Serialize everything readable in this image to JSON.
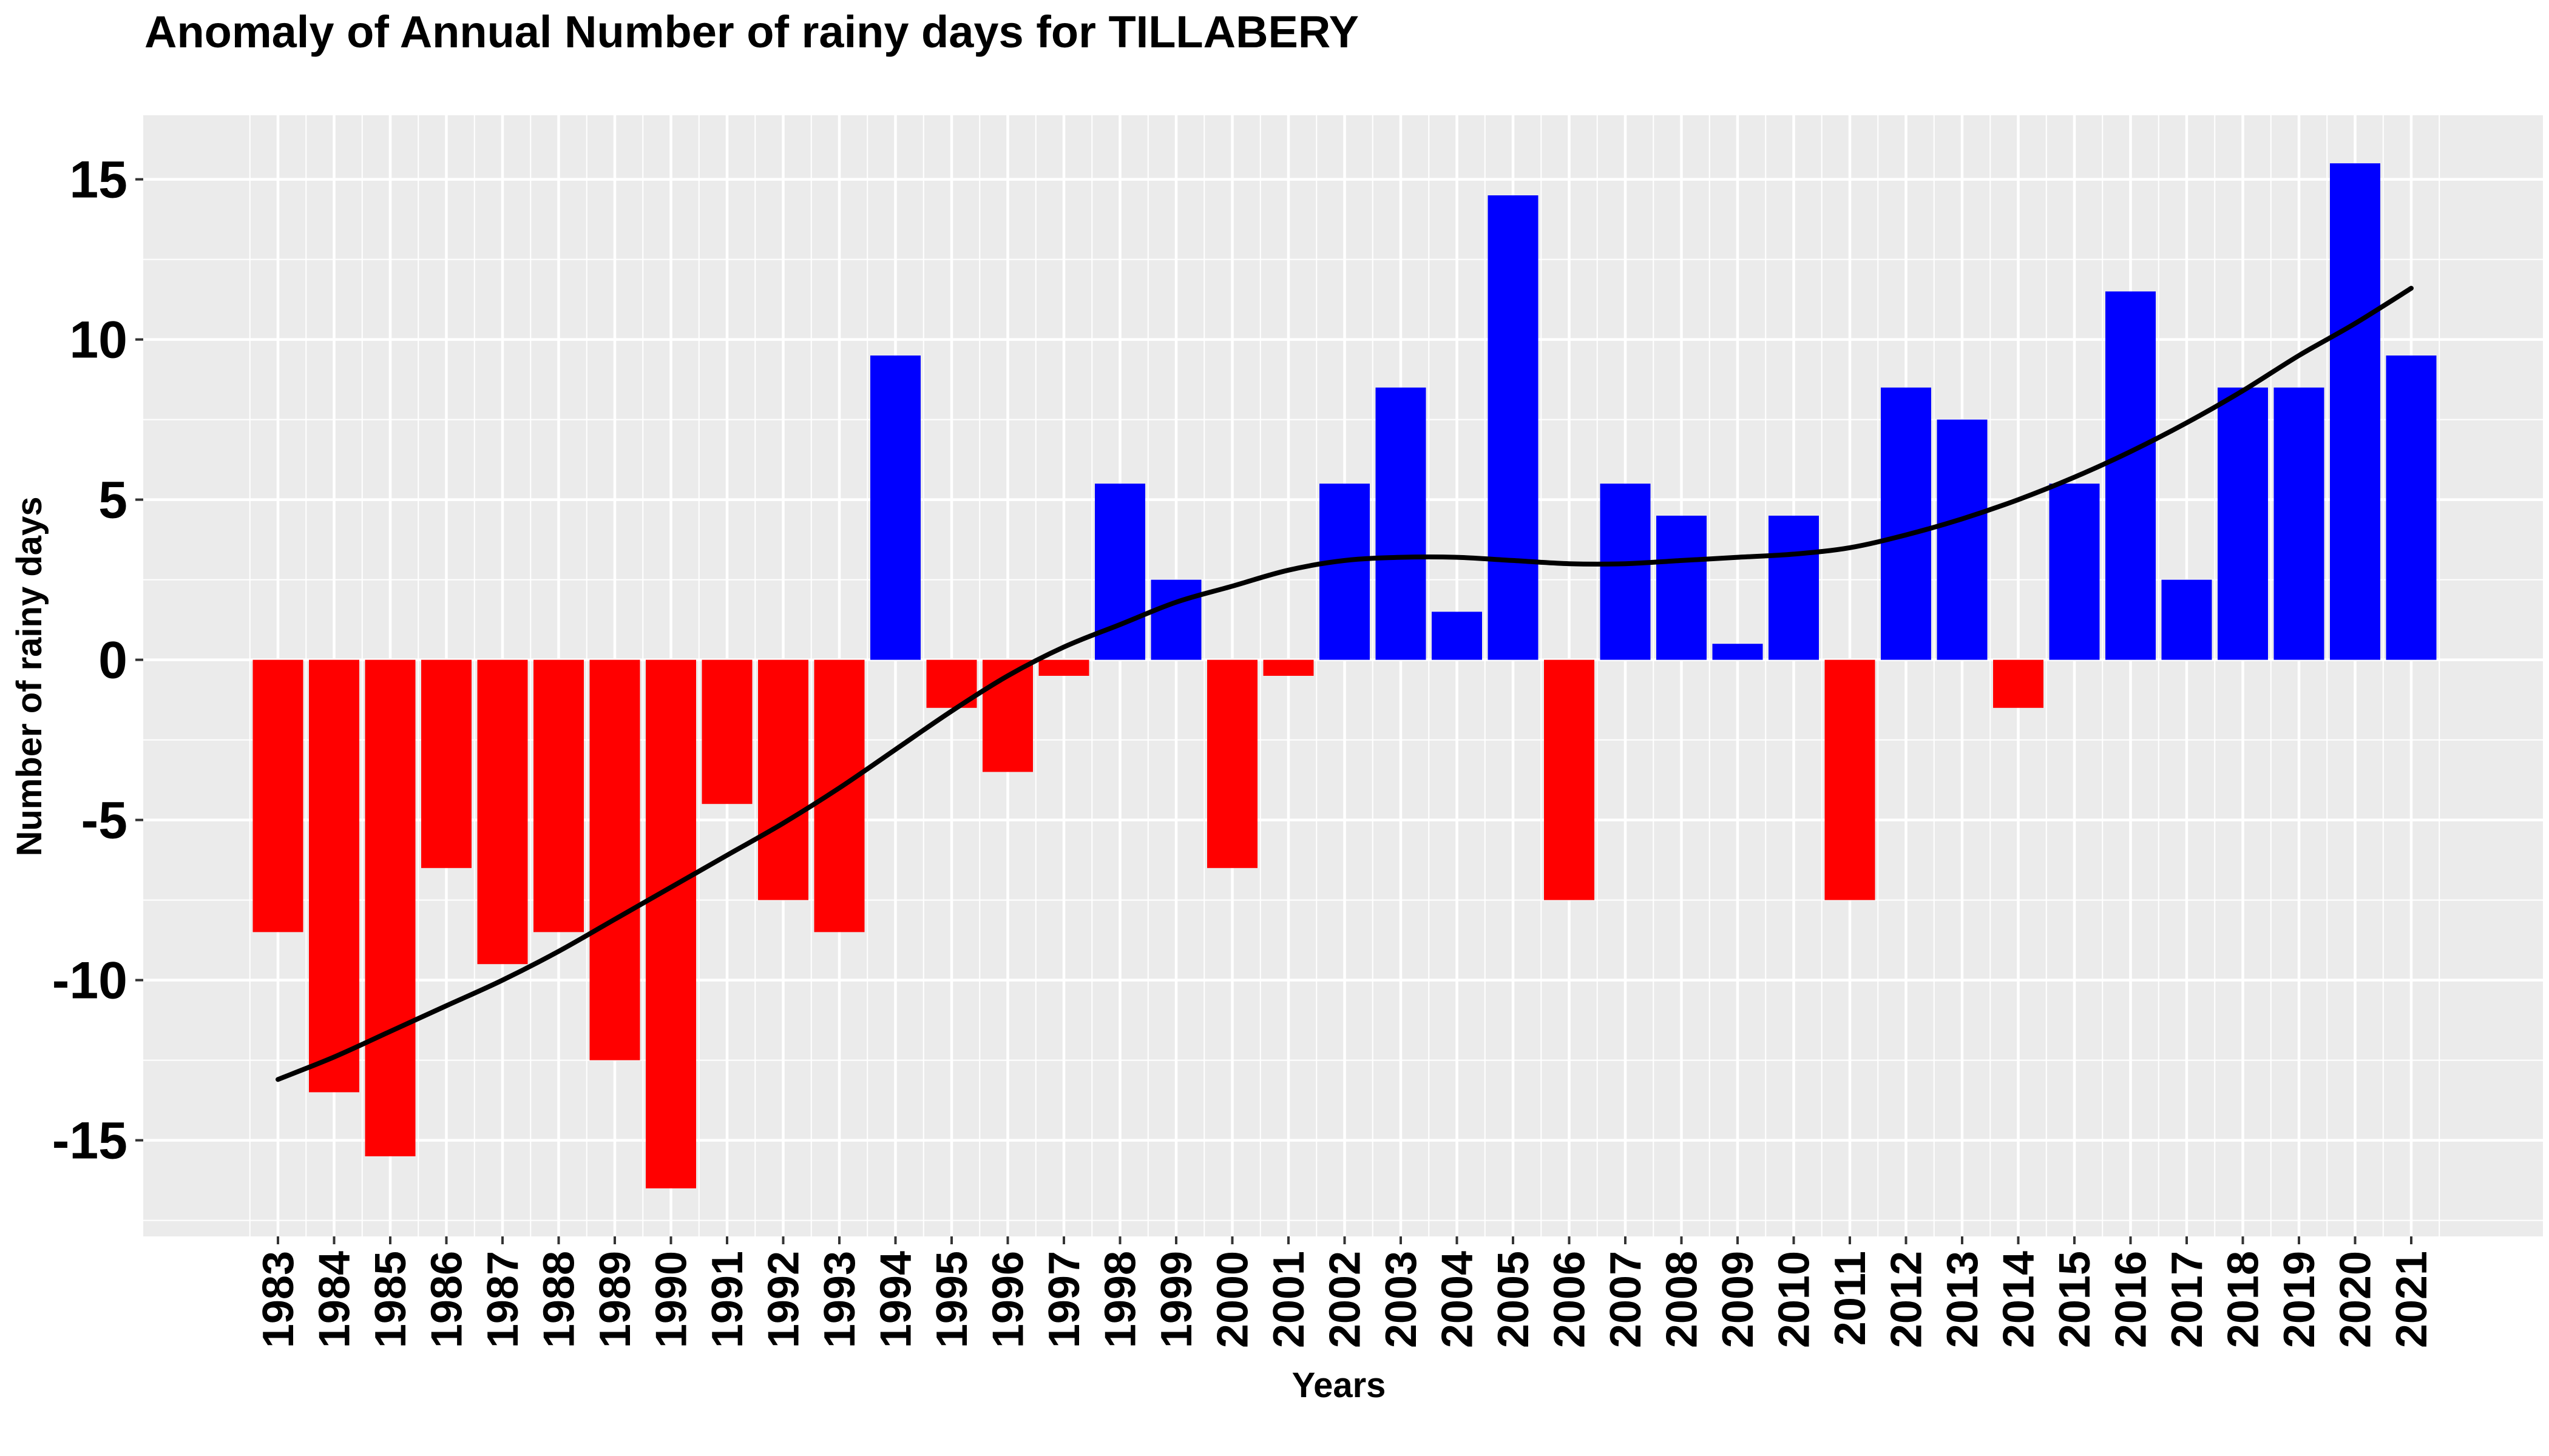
{
  "chart_data": {
    "type": "bar",
    "title": "Anomaly of Annual Number of rainy days for TILLABERY",
    "xlabel": "Years",
    "ylabel": "Number of rainy days",
    "categories": [
      "1983",
      "1984",
      "1985",
      "1986",
      "1987",
      "1988",
      "1989",
      "1990",
      "1991",
      "1992",
      "1993",
      "1994",
      "1995",
      "1996",
      "1997",
      "1998",
      "1999",
      "2000",
      "2001",
      "2002",
      "2003",
      "2004",
      "2005",
      "2006",
      "2007",
      "2008",
      "2009",
      "2010",
      "2011",
      "2012",
      "2013",
      "2014",
      "2015",
      "2016",
      "2017",
      "2018",
      "2019",
      "2020",
      "2021"
    ],
    "values": [
      -8.5,
      -13.5,
      -15.5,
      -6.5,
      -9.5,
      -8.5,
      -12.5,
      -16.5,
      -4.5,
      -7.5,
      -8.5,
      9.5,
      -1.5,
      -3.5,
      -0.5,
      5.5,
      2.5,
      -6.5,
      -0.5,
      5.5,
      8.5,
      1.5,
      14.5,
      -7.5,
      5.5,
      4.5,
      0.5,
      4.5,
      -7.5,
      8.5,
      7.5,
      -1.5,
      5.5,
      11.5,
      2.5,
      8.5,
      8.5,
      15.5,
      9.5
    ],
    "trend": {
      "name": "smoothed trend",
      "values": [
        -13.1,
        -12.4,
        -11.6,
        -10.8,
        -10.0,
        -9.1,
        -8.1,
        -7.1,
        -6.1,
        -5.1,
        -4.0,
        -2.8,
        -1.6,
        -0.5,
        0.4,
        1.1,
        1.8,
        2.3,
        2.8,
        3.1,
        3.2,
        3.2,
        3.1,
        3.0,
        3.0,
        3.1,
        3.2,
        3.3,
        3.5,
        3.9,
        4.4,
        5.0,
        5.7,
        6.5,
        7.4,
        8.4,
        9.5,
        10.5,
        11.6
      ]
    },
    "ylim": [
      -18,
      17
    ],
    "yticks": [
      -15,
      -10,
      -5,
      0,
      5,
      10,
      15
    ],
    "grid": true,
    "colors": {
      "positive": "#0000FF",
      "negative": "#FF0000",
      "trend": "#000000",
      "panel_background": "#EBEBEB",
      "grid": "#FFFFFF"
    }
  }
}
